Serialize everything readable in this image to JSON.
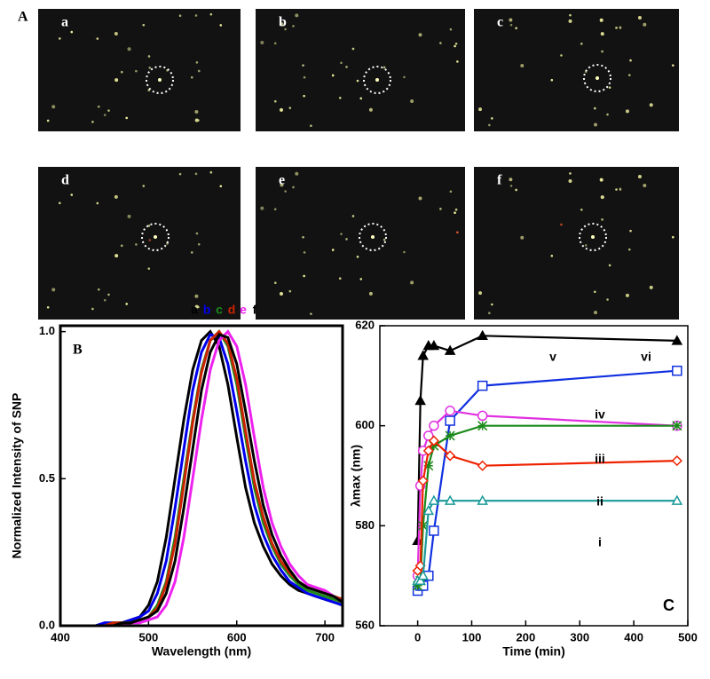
{
  "panel_a": {
    "label": "A",
    "images": [
      "a",
      "b",
      "c",
      "d",
      "e",
      "f"
    ]
  },
  "chart_data": [
    {
      "type": "line",
      "panel": "B",
      "y_label": "Normalized Intensity of SNP",
      "x_label": "Wavelength (nm)",
      "x": [
        420,
        430,
        440,
        450,
        460,
        470,
        480,
        490,
        500,
        510,
        520,
        530,
        540,
        550,
        560,
        570,
        580,
        590,
        600,
        610,
        620,
        630,
        640,
        650,
        660,
        670,
        680,
        690,
        700,
        710,
        720
      ],
      "series": [
        {
          "name": "a",
          "color": "#000000",
          "values": [
            0,
            0,
            0,
            0.01,
            0.01,
            0.01,
            0.02,
            0.03,
            0.07,
            0.15,
            0.3,
            0.5,
            0.7,
            0.87,
            0.97,
            1,
            0.95,
            0.82,
            0.64,
            0.47,
            0.35,
            0.27,
            0.21,
            0.17,
            0.14,
            0.12,
            0.11,
            0.1,
            0.09,
            0.08,
            0.07
          ]
        },
        {
          "name": "b",
          "color": "#0000ee",
          "values": [
            0,
            0,
            0,
            0.01,
            0.01,
            0.01,
            0.02,
            0.03,
            0.05,
            0.11,
            0.22,
            0.4,
            0.6,
            0.8,
            0.93,
            0.99,
            0.98,
            0.89,
            0.73,
            0.56,
            0.41,
            0.31,
            0.24,
            0.19,
            0.15,
            0.13,
            0.11,
            0.1,
            0.09,
            0.08,
            0.07
          ]
        },
        {
          "name": "c",
          "color": "#1a8a1a",
          "values": [
            0,
            0,
            0,
            0,
            0.01,
            0.01,
            0.01,
            0.02,
            0.03,
            0.07,
            0.15,
            0.3,
            0.5,
            0.7,
            0.87,
            0.97,
            1,
            0.95,
            0.82,
            0.64,
            0.47,
            0.35,
            0.27,
            0.21,
            0.17,
            0.14,
            0.12,
            0.11,
            0.1,
            0.09,
            0.08
          ]
        },
        {
          "name": "d",
          "color": "#cc2200",
          "values": [
            0,
            0,
            0,
            0,
            0.01,
            0.01,
            0.01,
            0.02,
            0.03,
            0.06,
            0.14,
            0.28,
            0.48,
            0.69,
            0.86,
            0.97,
            1,
            0.96,
            0.84,
            0.66,
            0.49,
            0.37,
            0.28,
            0.22,
            0.18,
            0.15,
            0.13,
            0.12,
            0.11,
            0.1,
            0.09
          ]
        },
        {
          "name": "e",
          "color": "#ee22ee",
          "values": [
            0,
            0,
            0,
            0,
            0,
            0,
            0.01,
            0.01,
            0.02,
            0.03,
            0.07,
            0.15,
            0.3,
            0.5,
            0.7,
            0.87,
            0.97,
            1,
            0.95,
            0.82,
            0.64,
            0.47,
            0.35,
            0.27,
            0.21,
            0.17,
            0.14,
            0.13,
            0.12,
            0.1,
            0.08
          ]
        },
        {
          "name": "f",
          "color": "#000000",
          "values": [
            0,
            0,
            0,
            0,
            0,
            0.01,
            0.01,
            0.02,
            0.03,
            0.05,
            0.11,
            0.22,
            0.4,
            0.6,
            0.8,
            0.93,
            0.99,
            0.98,
            0.89,
            0.73,
            0.56,
            0.41,
            0.31,
            0.24,
            0.19,
            0.15,
            0.13,
            0.12,
            0.11,
            0.1,
            0.08
          ]
        }
      ],
      "xlim": [
        400,
        720
      ],
      "xticks": [
        400,
        500,
        600,
        700
      ],
      "ylim": [
        0,
        1.02
      ],
      "yticks": [
        {
          "value": 0,
          "label": "0.0"
        },
        {
          "value": 0.5,
          "label": "0.5"
        },
        {
          "value": 1,
          "label": "1.0"
        }
      ]
    },
    {
      "type": "line",
      "panel": "C",
      "y_label": "λmax (nm)",
      "x_label": "Time (min)",
      "x": [
        0,
        5,
        10,
        20,
        30,
        60,
        120,
        480
      ],
      "series": [
        {
          "name": "vi",
          "color": "#000000",
          "marker": "triangle",
          "values": [
            577,
            605,
            614,
            616,
            616,
            615,
            618,
            617
          ]
        },
        {
          "name": "v",
          "color": "#1030e0",
          "marker": "square-open",
          "values": [
            567,
            568,
            568,
            570,
            579,
            601,
            608,
            611
          ]
        },
        {
          "name": "iv",
          "color": "#e030e0",
          "marker": "circle-open",
          "values": [
            570,
            588,
            595,
            598,
            600,
            603,
            602,
            600
          ]
        },
        {
          "name": "iii",
          "color": "#1a8a1a",
          "marker": "star",
          "values": [
            568,
            569,
            580,
            592,
            596,
            598,
            600,
            600
          ]
        },
        {
          "name": "ii",
          "color": "#ee2200",
          "marker": "diamond-open",
          "values": [
            571,
            572,
            589,
            595,
            597,
            594,
            592,
            593
          ]
        },
        {
          "name": "i",
          "color": "#1a9a9a",
          "marker": "triangle-open",
          "values": [
            569,
            569,
            570,
            583,
            585,
            585,
            585,
            585
          ]
        }
      ],
      "xlim": [
        -70,
        500
      ],
      "xticks": [
        0,
        100,
        200,
        300,
        400,
        500
      ],
      "ylim": [
        560,
        620
      ],
      "yticks": [
        560,
        580,
        600,
        620
      ]
    }
  ]
}
